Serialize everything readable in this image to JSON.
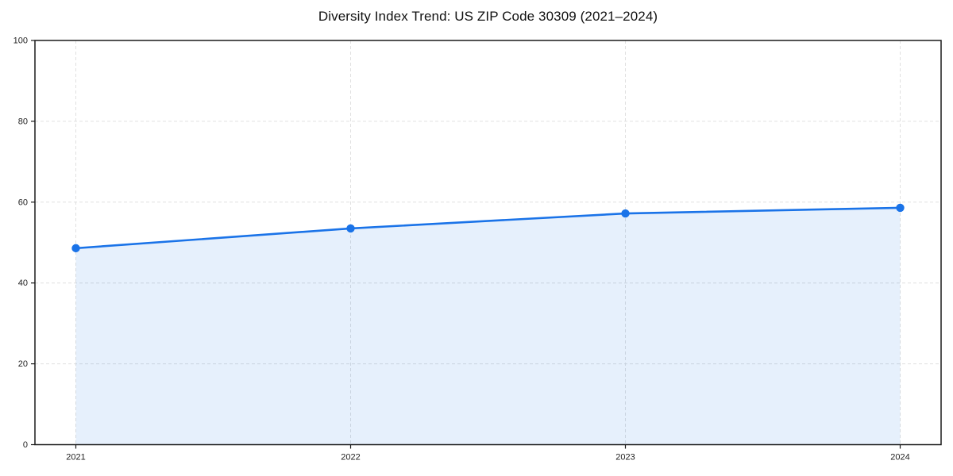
{
  "chart_data": {
    "type": "line",
    "title": "Diversity Index Trend: US ZIP Code 30309 (2021–2024)",
    "x": [
      2021,
      2022,
      2023,
      2024
    ],
    "xtick_labels": [
      "2021",
      "2022",
      "2023",
      "2024"
    ],
    "series": [
      {
        "name": "Diversity Index",
        "values": [
          48.6,
          53.5,
          57.2,
          58.6
        ]
      }
    ],
    "xlabel": "",
    "ylabel": "",
    "ylim": [
      0,
      100
    ],
    "yticks": [
      0,
      20,
      40,
      60,
      80,
      100
    ],
    "grid": true,
    "grid_style": "dashed",
    "legend_position": "none",
    "area_fill": true,
    "colors": {
      "line": "#1a73e8",
      "marker": "#1a73e8",
      "fill": "rgba(26,115,232,0.11)",
      "grid": "#e0e0e0",
      "axis": "#1a1a1a",
      "title": "#111111",
      "tick_label": "#222222",
      "background": "#ffffff"
    }
  }
}
